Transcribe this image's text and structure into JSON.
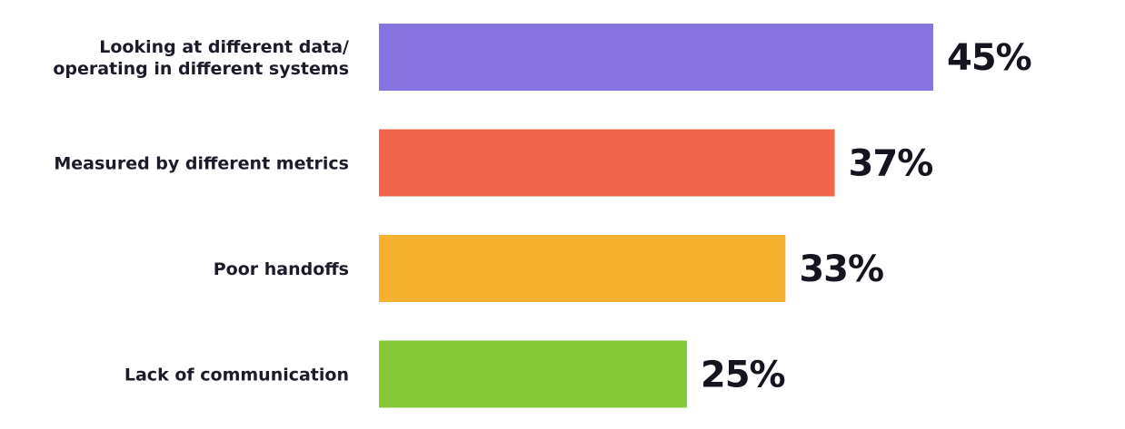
{
  "chart_data": {
    "type": "bar",
    "orientation": "horizontal",
    "categories": [
      [
        "Looking at different data/",
        "operating in different systems"
      ],
      [
        "Measured by different metrics"
      ],
      [
        "Poor handoffs"
      ],
      [
        "Lack of communication"
      ]
    ],
    "values": [
      45,
      37,
      33,
      25
    ],
    "value_labels": [
      "45%",
      "37%",
      "33%",
      "25%"
    ],
    "colors": [
      "#8874e0",
      "#f0654c",
      "#f5b02f",
      "#84c935"
    ],
    "xlim": [
      0,
      45
    ],
    "grid": false,
    "legend": "none"
  }
}
